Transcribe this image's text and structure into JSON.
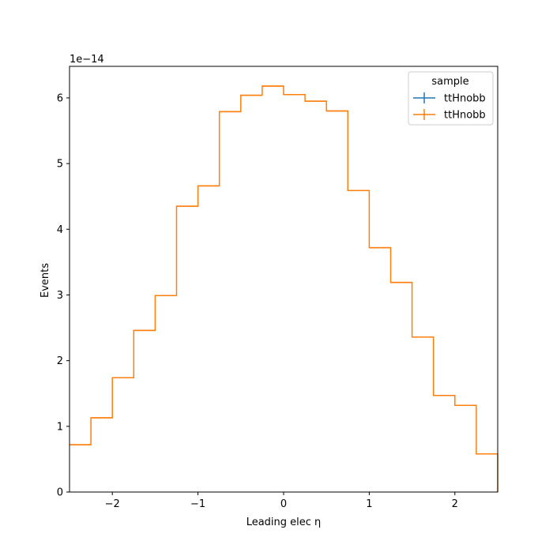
{
  "chart_data": {
    "type": "step",
    "title": "",
    "xlabel": "Leading elec η",
    "ylabel": "Events",
    "y_offset_label": "1e−14",
    "y_multiplier": 1e-14,
    "xlim": [
      -2.5,
      2.5
    ],
    "ylim": [
      0,
      6.48
    ],
    "x_ticks": [
      -2,
      -1,
      0,
      1,
      2
    ],
    "x_tick_labels": [
      "−2",
      "−1",
      "0",
      "1",
      "2"
    ],
    "y_ticks": [
      0,
      1,
      2,
      3,
      4,
      5,
      6
    ],
    "y_tick_labels": [
      "0",
      "1",
      "2",
      "3",
      "4",
      "5",
      "6"
    ],
    "bin_edges": [
      -2.5,
      -2.25,
      -2.0,
      -1.75,
      -1.5,
      -1.25,
      -1.0,
      -0.75,
      -0.5,
      -0.25,
      0.0,
      0.25,
      0.5,
      0.75,
      1.0,
      1.25,
      1.5,
      1.75,
      2.0,
      2.25,
      2.5
    ],
    "series": [
      {
        "name": "ttHnobb",
        "color": "#ff7f0e",
        "values": [
          0.72,
          1.13,
          1.74,
          2.46,
          2.99,
          4.35,
          4.66,
          5.79,
          6.04,
          6.18,
          6.05,
          5.95,
          5.8,
          4.59,
          3.72,
          3.19,
          2.36,
          1.47,
          1.32,
          0.58
        ]
      }
    ],
    "legend": {
      "title": "sample",
      "placement": "top-right",
      "entries": [
        {
          "label": "ttHnobb",
          "color": "#1f77b4"
        },
        {
          "label": "ttHnobb",
          "color": "#ff7f0e"
        }
      ]
    },
    "grid": false
  }
}
